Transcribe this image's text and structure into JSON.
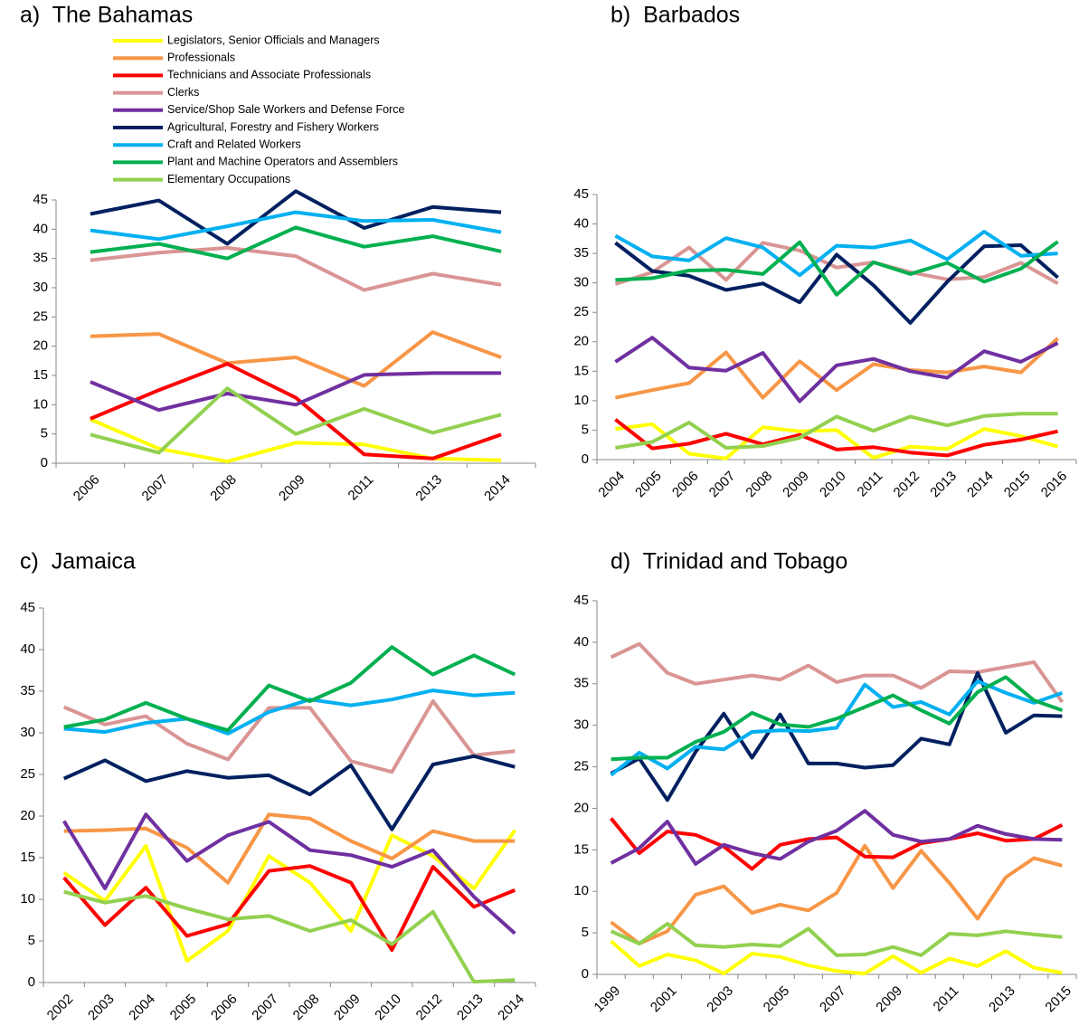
{
  "chart_data": [
    {
      "type": "line",
      "title": "a)  The Bahamas",
      "legend": "top",
      "categories": [
        "2006",
        "2007",
        "2008",
        "2009",
        "2011",
        "2013",
        "2014"
      ],
      "ylim": [
        0,
        45
      ],
      "yticks": [
        0,
        5,
        10,
        15,
        20,
        25,
        30,
        35,
        40,
        45
      ],
      "series": [
        {
          "name": "Legislators, Senior Officials and Managers",
          "color": "#FFFF00",
          "values": [
            7.5,
            2.5,
            0.3,
            3.5,
            3.2,
            0.8,
            0.5
          ]
        },
        {
          "name": "Professionals",
          "color": "#F79646",
          "values": [
            21.7,
            22.1,
            17.1,
            18.1,
            13.2,
            22.4,
            18.1
          ]
        },
        {
          "name": "Technicians and Associate Professionals",
          "color": "#FF0000",
          "values": [
            7.6,
            12.5,
            17.0,
            11.2,
            1.5,
            0.8,
            4.9
          ]
        },
        {
          "name": "Clerks",
          "color": "#D99594",
          "values": [
            34.7,
            36.0,
            36.8,
            35.4,
            29.6,
            32.4,
            30.5
          ]
        },
        {
          "name": "Service/Shop Sale Workers and Defense Force",
          "color": "#7030A0",
          "values": [
            13.9,
            9.1,
            11.9,
            10.0,
            15.1,
            15.4,
            15.4
          ]
        },
        {
          "name": "Agricultural, Forestry and Fishery Workers",
          "color": "#002060",
          "values": [
            42.6,
            44.9,
            37.5,
            46.5,
            40.2,
            43.8,
            42.9
          ]
        },
        {
          "name": "Craft and Related Workers",
          "color": "#00B0F0",
          "values": [
            39.8,
            38.3,
            40.5,
            42.9,
            41.4,
            41.6,
            39.5
          ]
        },
        {
          "name": "Plant and Machine Operators and Assemblers",
          "color": "#00B050",
          "values": [
            36.1,
            37.5,
            35.0,
            40.3,
            37.0,
            38.8,
            36.2
          ]
        },
        {
          "name": "Elementary Occupations",
          "color": "#92D050",
          "values": [
            4.9,
            1.8,
            12.8,
            5.0,
            9.3,
            5.2,
            8.3
          ]
        }
      ]
    },
    {
      "type": "line",
      "title": "b)  Barbados",
      "categories": [
        "2004",
        "2005",
        "2006",
        "2007",
        "2008",
        "2009",
        "2010",
        "2011",
        "2012",
        "2013",
        "2014",
        "2015",
        "2016"
      ],
      "ylim": [
        0,
        45
      ],
      "yticks": [
        0,
        5,
        10,
        15,
        20,
        25,
        30,
        35,
        40,
        45
      ],
      "series": [
        {
          "name": "Legislators, Senior Officials and Managers",
          "color": "#FFFF00",
          "values": [
            5.2,
            6.0,
            1.0,
            0.2,
            5.5,
            4.8,
            5.0,
            0.3,
            2.2,
            1.8,
            5.2,
            4.0,
            2.2
          ]
        },
        {
          "name": "Professionals",
          "color": "#F79646",
          "values": [
            10.5,
            11.8,
            13.0,
            18.2,
            10.5,
            16.7,
            11.8,
            16.2,
            15.2,
            14.8,
            15.8,
            14.8,
            20.6
          ]
        },
        {
          "name": "Technicians and Associate Professionals",
          "color": "#FF0000",
          "values": [
            6.8,
            1.9,
            2.7,
            4.4,
            2.6,
            4.2,
            1.7,
            2.1,
            1.2,
            0.7,
            2.5,
            3.4,
            4.8
          ]
        },
        {
          "name": "Clerks",
          "color": "#D99594",
          "values": [
            29.8,
            31.8,
            36.0,
            30.5,
            36.8,
            35.5,
            32.6,
            33.5,
            31.8,
            30.6,
            31.0,
            33.4,
            29.9
          ]
        },
        {
          "name": "Service/Shop Sale Workers and Defense Force",
          "color": "#7030A0",
          "values": [
            16.6,
            20.7,
            15.6,
            15.1,
            18.1,
            9.9,
            16.0,
            17.1,
            15.0,
            13.9,
            18.4,
            16.6,
            19.8
          ]
        },
        {
          "name": "Agricultural, Forestry and Fishery Workers",
          "color": "#002060",
          "values": [
            36.8,
            32.0,
            31.2,
            28.8,
            29.9,
            26.7,
            34.8,
            29.6,
            23.2,
            30.2,
            36.2,
            36.4,
            30.9
          ]
        },
        {
          "name": "Craft and Related Workers",
          "color": "#00B0F0",
          "values": [
            38.0,
            34.5,
            33.8,
            37.6,
            36.0,
            31.3,
            36.3,
            36.0,
            37.2,
            34.0,
            38.7,
            34.6,
            35.0
          ]
        },
        {
          "name": "Plant and Machine Operators and Assemblers",
          "color": "#00B050",
          "values": [
            30.5,
            30.8,
            32.1,
            32.2,
            31.5,
            36.9,
            28.0,
            33.5,
            31.5,
            33.4,
            30.2,
            32.4,
            37.0
          ]
        },
        {
          "name": "Elementary Occupations",
          "color": "#92D050",
          "values": [
            2.0,
            3.0,
            6.3,
            2.0,
            2.3,
            3.7,
            7.3,
            4.9,
            7.3,
            5.8,
            7.4,
            7.8,
            7.8
          ]
        }
      ]
    },
    {
      "type": "line",
      "title": "c)  Jamaica",
      "categories": [
        "2002",
        "2003",
        "2004",
        "2005",
        "2006",
        "2007",
        "2008",
        "2009",
        "2010",
        "2012",
        "2013",
        "2014"
      ],
      "ylim": [
        0,
        45
      ],
      "yticks": [
        0,
        5,
        10,
        15,
        20,
        25,
        30,
        35,
        40,
        45
      ],
      "series": [
        {
          "name": "Legislators, Senior Officials and Managers",
          "color": "#FFFF00",
          "values": [
            13.2,
            9.8,
            16.4,
            2.6,
            6.2,
            15.2,
            12.0,
            6.2,
            17.7,
            15.2,
            11.3,
            18.3
          ]
        },
        {
          "name": "Professionals",
          "color": "#F79646",
          "values": [
            18.2,
            18.3,
            18.5,
            16.2,
            12.0,
            20.2,
            19.7,
            17.0,
            14.9,
            18.2,
            17.0,
            17.0
          ]
        },
        {
          "name": "Technicians and Associate Professionals",
          "color": "#FF0000",
          "values": [
            12.6,
            6.9,
            11.4,
            5.6,
            7.0,
            13.4,
            14.0,
            12.0,
            3.9,
            13.9,
            9.1,
            11.1
          ]
        },
        {
          "name": "Clerks",
          "color": "#D99594",
          "values": [
            33.1,
            31.0,
            32.0,
            28.7,
            26.8,
            33.0,
            33.0,
            26.6,
            25.3,
            33.8,
            27.3,
            27.8
          ]
        },
        {
          "name": "Service/Shop Sale Workers and Defense Force",
          "color": "#7030A0",
          "values": [
            19.4,
            11.3,
            20.2,
            14.6,
            17.7,
            19.3,
            15.9,
            15.3,
            13.9,
            15.9,
            10.3,
            5.9
          ]
        },
        {
          "name": "Agricultural, Forestry and Fishery Workers",
          "color": "#002060",
          "values": [
            24.5,
            26.7,
            24.2,
            25.4,
            24.6,
            24.9,
            22.6,
            26.1,
            18.4,
            26.2,
            27.2,
            25.9
          ]
        },
        {
          "name": "Craft and Related Workers",
          "color": "#00B0F0",
          "values": [
            30.5,
            30.1,
            31.2,
            31.7,
            29.9,
            32.5,
            34.0,
            33.3,
            34.0,
            35.1,
            34.5,
            34.8
          ]
        },
        {
          "name": "Plant and Machine Operators and Assemblers",
          "color": "#00B050",
          "values": [
            30.7,
            31.6,
            33.6,
            31.7,
            30.3,
            35.7,
            33.8,
            36.0,
            40.3,
            37.0,
            39.3,
            37.0
          ]
        },
        {
          "name": "Elementary Occupations",
          "color": "#92D050",
          "values": [
            10.9,
            9.6,
            10.4,
            8.9,
            7.6,
            8.0,
            6.2,
            7.5,
            4.6,
            8.5,
            0.1,
            0.3
          ]
        }
      ]
    },
    {
      "type": "line",
      "title": "d)  Trinidad and Tobago",
      "categories": [
        "1999",
        null,
        "2001",
        null,
        "2003",
        null,
        "2005",
        null,
        "2007",
        null,
        "2009",
        null,
        "2011",
        null,
        "2013",
        null,
        "2015"
      ],
      "ylim": [
        0,
        45
      ],
      "yticks": [
        0,
        5,
        10,
        15,
        20,
        25,
        30,
        35,
        40,
        45
      ],
      "series": [
        {
          "name": "Legislators, Senior Officials and Managers",
          "color": "#FFFF00",
          "values": [
            4.0,
            1.0,
            2.4,
            1.7,
            0.1,
            2.5,
            2.1,
            1.1,
            0.4,
            0.1,
            2.2,
            0.2,
            1.9,
            1.0,
            2.8,
            0.8,
            0.2
          ]
        },
        {
          "name": "Professionals",
          "color": "#F79646",
          "values": [
            6.3,
            3.7,
            5.2,
            9.6,
            10.6,
            7.4,
            8.4,
            7.7,
            9.8,
            15.5,
            10.4,
            14.9,
            11.0,
            6.7,
            11.7,
            14.0,
            13.1
          ]
        },
        {
          "name": "Technicians and Associate Professionals",
          "color": "#FF0000",
          "values": [
            18.8,
            14.6,
            17.2,
            16.8,
            15.4,
            12.7,
            15.6,
            16.3,
            16.5,
            14.2,
            14.1,
            15.8,
            16.3,
            17.0,
            16.1,
            16.3,
            18.0
          ]
        },
        {
          "name": "Clerks",
          "color": "#D99594",
          "values": [
            38.2,
            39.8,
            36.3,
            35.0,
            35.5,
            36.0,
            35.5,
            37.2,
            35.2,
            36.0,
            36.0,
            34.5,
            36.5,
            36.4,
            37.0,
            37.6,
            32.8
          ]
        },
        {
          "name": "Service/Shop Sale Workers and Defense Force",
          "color": "#7030A0",
          "values": [
            13.4,
            15.2,
            18.4,
            13.3,
            15.6,
            14.6,
            13.9,
            16.0,
            17.3,
            19.7,
            16.8,
            16.0,
            16.3,
            17.9,
            16.9,
            16.3,
            16.2
          ]
        },
        {
          "name": "Agricultural, Forestry and Fishery Workers",
          "color": "#002060",
          "values": [
            24.2,
            26.0,
            21.0,
            26.8,
            31.4,
            26.1,
            31.3,
            25.4,
            25.4,
            24.9,
            25.2,
            28.4,
            27.7,
            36.3,
            29.1,
            31.2,
            31.1
          ]
        },
        {
          "name": "Craft and Related Workers",
          "color": "#00B0F0",
          "values": [
            24.0,
            26.7,
            24.8,
            27.4,
            27.1,
            29.2,
            29.4,
            29.3,
            29.7,
            34.9,
            32.2,
            32.8,
            31.3,
            35.3,
            33.9,
            32.7,
            33.9
          ]
        },
        {
          "name": "Plant and Machine Operators and Assemblers",
          "color": "#00B050",
          "values": [
            25.9,
            26.1,
            26.1,
            28.0,
            29.2,
            31.5,
            30.1,
            29.8,
            30.8,
            32.2,
            33.6,
            31.8,
            30.2,
            34.0,
            35.8,
            33.0,
            31.8
          ]
        },
        {
          "name": "Elementary Occupations",
          "color": "#92D050",
          "values": [
            5.2,
            3.7,
            6.1,
            3.5,
            3.3,
            3.6,
            3.4,
            5.5,
            2.3,
            2.4,
            3.3,
            2.3,
            4.9,
            4.7,
            5.2,
            4.8,
            4.5
          ]
        }
      ]
    }
  ]
}
